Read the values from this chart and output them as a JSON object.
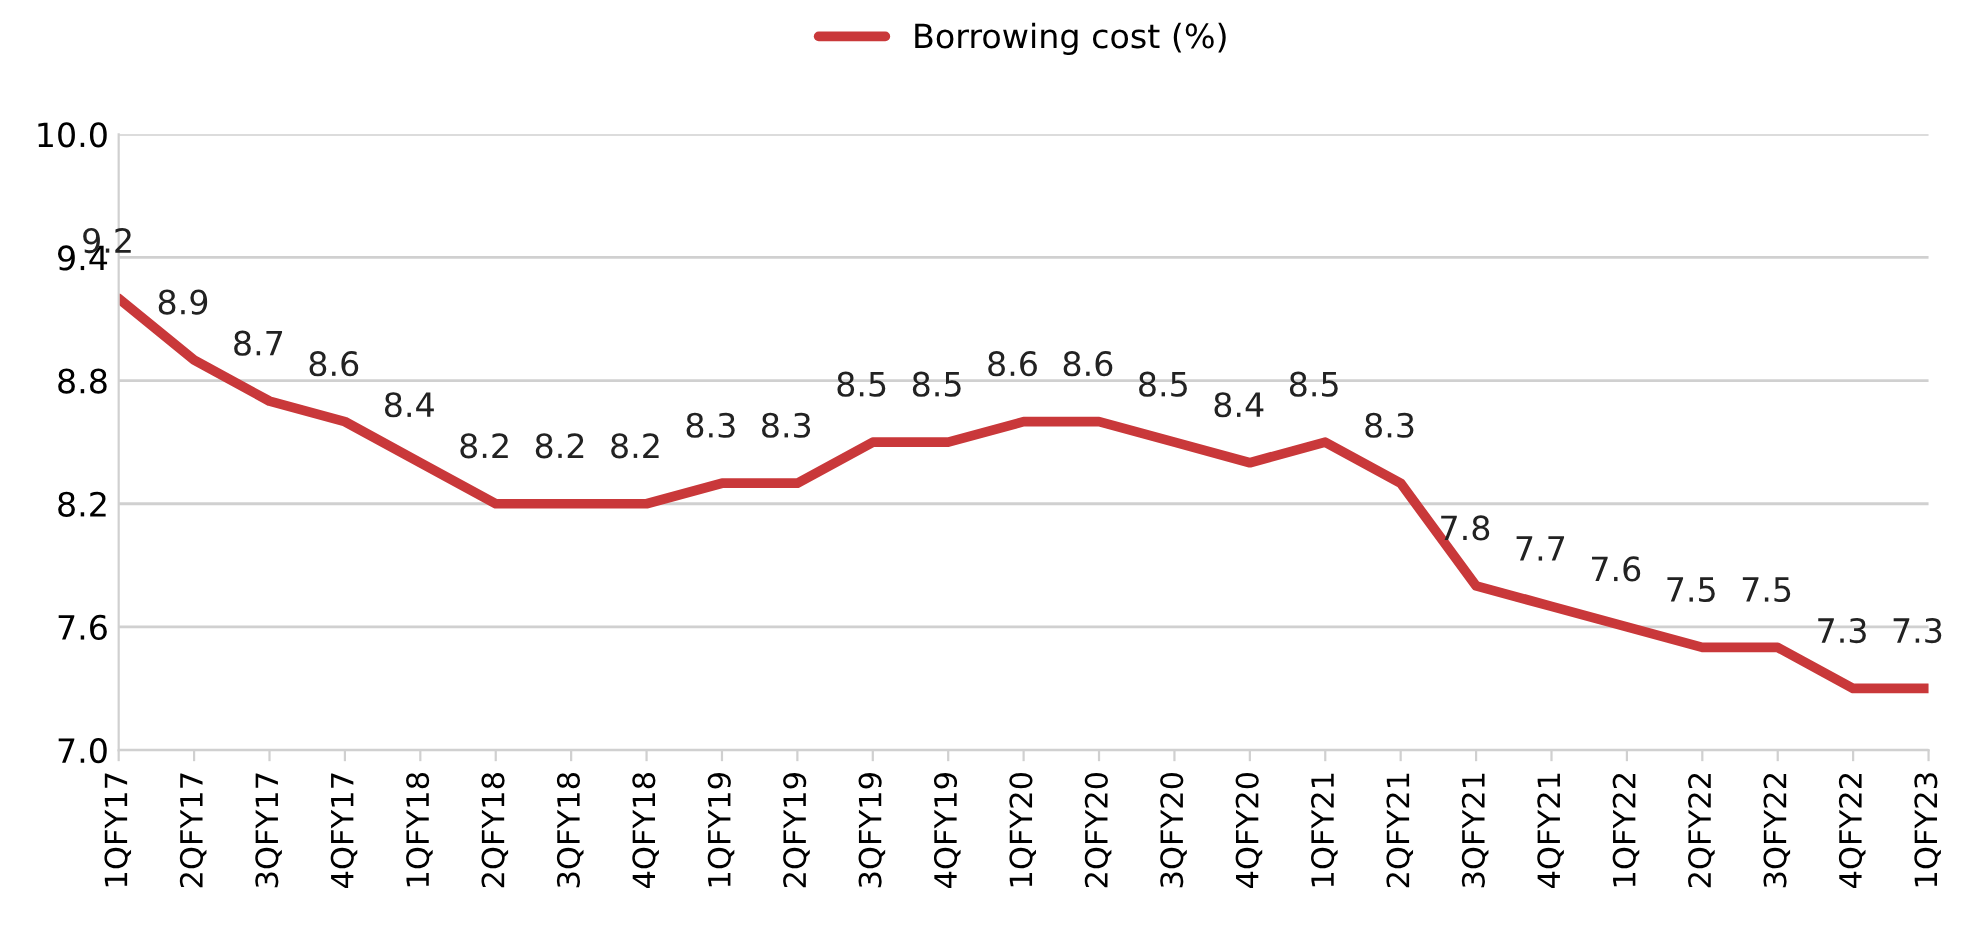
{
  "chart_data": {
    "type": "line",
    "categories": [
      "1QFY17",
      "2QFY17",
      "3QFY17",
      "4QFY17",
      "1QFY18",
      "2QFY18",
      "3QFY18",
      "4QFY18",
      "1QFY19",
      "2QFY19",
      "3QFY19",
      "4QFY19",
      "1QFY20",
      "2QFY20",
      "3QFY20",
      "4QFY20",
      "1QFY21",
      "2QFY21",
      "3QFY21",
      "4QFY21",
      "1QFY22",
      "2QFY22",
      "3QFY22",
      "4QFY22",
      "1QFY23"
    ],
    "series": [
      {
        "name": "Borrowing cost (%)",
        "color": "#c9383a",
        "values": [
          9.2,
          8.9,
          8.7,
          8.6,
          8.4,
          8.2,
          8.2,
          8.2,
          8.3,
          8.3,
          8.5,
          8.5,
          8.6,
          8.6,
          8.5,
          8.4,
          8.5,
          8.3,
          7.8,
          7.7,
          7.6,
          7.5,
          7.5,
          7.3,
          7.3
        ]
      }
    ],
    "ylim": [
      7.0,
      10.0
    ],
    "yticks": [
      {
        "value": 7.0,
        "label": "7.0"
      },
      {
        "value": 7.6,
        "label": "7.6"
      },
      {
        "value": 8.2,
        "label": "8.2"
      },
      {
        "value": 8.8,
        "label": "8.8"
      },
      {
        "value": 9.4,
        "label": "9.4"
      },
      {
        "value": 10.0,
        "label": "10.0"
      }
    ],
    "grid": "y",
    "legend": "top",
    "data_labels": true,
    "marker": "none",
    "line_style": "solid"
  }
}
